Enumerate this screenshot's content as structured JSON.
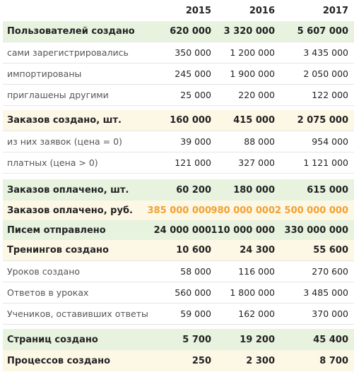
{
  "header": {
    "years": [
      "2015",
      "2016",
      "2017"
    ]
  },
  "rows": [
    {
      "label": "Пользователей создано",
      "v2015": "620 000",
      "v2016": "3 320 000",
      "v2017": "5 607 000"
    },
    {
      "label": "сами зарегистрировались",
      "v2015": "350 000",
      "v2016": "1 200 000",
      "v2017": "3 435 000"
    },
    {
      "label": "импортированы",
      "v2015": "245 000",
      "v2016": "1 900 000",
      "v2017": "2 050 000"
    },
    {
      "label": "приглашены другими",
      "v2015": "25 000",
      "v2016": "220 000",
      "v2017": "122 000"
    },
    {
      "label": "Заказов создано, шт.",
      "v2015": "160 000",
      "v2016": "415 000",
      "v2017": "2 075 000"
    },
    {
      "label": "из них заявок (цена = 0)",
      "v2015": "39 000",
      "v2016": "88 000",
      "v2017": "954 000"
    },
    {
      "label": "платных (цена > 0)",
      "v2015": "121 000",
      "v2016": "327 000",
      "v2017": "1 121 000"
    },
    {
      "label": "Заказов оплачено, шт.",
      "v2015": "60 200",
      "v2016": "180 000",
      "v2017": "615 000"
    },
    {
      "label": "Заказов оплачено, руб.",
      "v2015": "385 000 000",
      "v2016": "980 000 000",
      "v2017": "2 500 000 000"
    },
    {
      "label": "Писем отправлено",
      "v2015": "24 000 000",
      "v2016": "110 000 000",
      "v2017": "330 000 000"
    },
    {
      "label": "Тренингов создано",
      "v2015": "10 600",
      "v2016": "24 300",
      "v2017": "55 600"
    },
    {
      "label": "Уроков создано",
      "v2015": "58 000",
      "v2016": "116 000",
      "v2017": "270 600"
    },
    {
      "label": "Ответов в уроках",
      "v2015": "560 000",
      "v2016": "1 800 000",
      "v2017": "3 485 000"
    },
    {
      "label": "Учеников, оставивших ответы",
      "v2015": "59 000",
      "v2016": "162 000",
      "v2017": "370 000"
    },
    {
      "label": "Страниц создано",
      "v2015": "5 700",
      "v2016": "19 200",
      "v2017": "45 400"
    },
    {
      "label": "Процессов создано",
      "v2015": "250",
      "v2016": "2 300",
      "v2017": "8 700"
    }
  ],
  "colors": {
    "highlight_green": "#e7f2df",
    "highlight_yellow": "#fdf7e6",
    "accent_orange": "#f0a232",
    "row_border": "#e6e6e6"
  }
}
